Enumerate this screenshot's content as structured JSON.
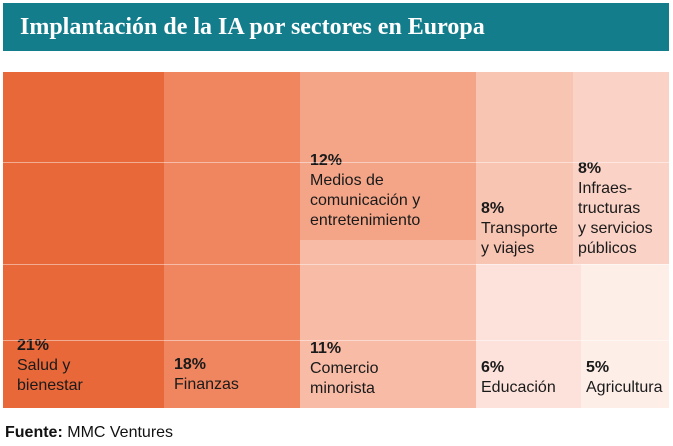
{
  "title": "Implantación de la IA por sectores en Europa",
  "chart_data": {
    "type": "treemap",
    "unit": "%",
    "sectors": [
      {
        "label": "Salud y\nbienestar",
        "value": 21,
        "display": "21%",
        "color": "#e8683a"
      },
      {
        "label": "Finanzas",
        "value": 18,
        "display": "18%",
        "color": "#ef8660"
      },
      {
        "label": "Medios de\ncomunicación y\nentretenimiento",
        "value": 12,
        "display": "12%",
        "color": "#f4a588"
      },
      {
        "label": "Comercio\nminorista",
        "value": 11,
        "display": "11%",
        "color": "#f7bba6"
      },
      {
        "label": "Transporte\ny viajes",
        "value": 8,
        "display": "8%",
        "color": "#f9c5b3"
      },
      {
        "label": "Infraes-\ntructuras\ny servicios\npúblicos",
        "value": 8,
        "display": "8%",
        "color": "#fbd3c6"
      },
      {
        "label": "Educación",
        "value": 6,
        "display": "6%",
        "color": "#fce2da"
      },
      {
        "label": "Agricultura",
        "value": 5,
        "display": "5%",
        "color": "#fdeee8"
      }
    ]
  },
  "source": {
    "label": "Fuente:",
    "text": "MMC Ventures"
  }
}
